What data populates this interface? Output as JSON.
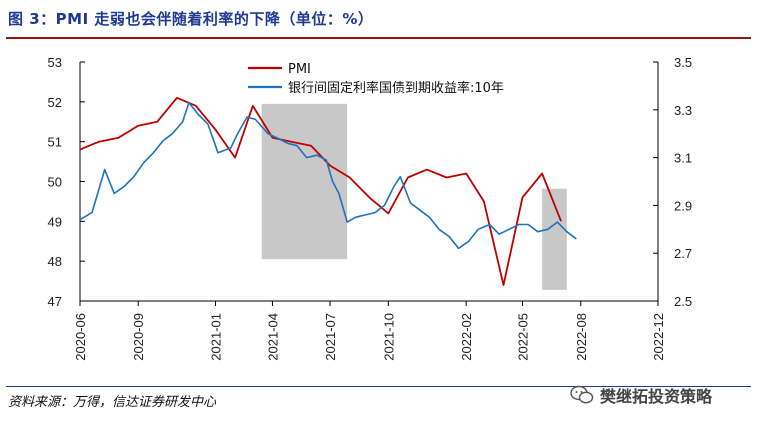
{
  "title": "图 3：PMI 走弱也会伴随着利率的下降（单位：%）",
  "source": "资料来源：万得，信达证券研发中心",
  "watermark": "樊继拓投资策略",
  "colors": {
    "pmi": "#c00000",
    "yield": "#1e73be",
    "shade": "#c8c8c8",
    "title": "#1f3a93"
  },
  "chart_data": {
    "type": "line",
    "x_labels": [
      "2020-06",
      "2020-09",
      "2021-01",
      "2021-04",
      "2021-07",
      "2021-10",
      "2022-02",
      "2022-05",
      "2022-08",
      "2022-12"
    ],
    "y_left": {
      "range": [
        47,
        53
      ],
      "ticks": [
        "47",
        "48",
        "49",
        "50",
        "51",
        "52",
        "53"
      ]
    },
    "y_right": {
      "range": [
        2.5,
        3.5
      ],
      "ticks": [
        "2.5",
        "2.7",
        "2.9",
        "3.1",
        "3.3",
        "3.5"
      ]
    },
    "shaded_ranges": [
      [
        "2021-03-15",
        "2021-07-28"
      ],
      [
        "2022-06-01",
        "2022-07-10"
      ]
    ],
    "series": [
      {
        "name": "PMI",
        "axis": "left",
        "points": [
          [
            "2020-06-01",
            50.8
          ],
          [
            "2020-07-01",
            51.0
          ],
          [
            "2020-08-01",
            51.1
          ],
          [
            "2020-09-01",
            51.4
          ],
          [
            "2020-10-01",
            51.5
          ],
          [
            "2020-11-01",
            52.1
          ],
          [
            "2020-12-01",
            51.9
          ],
          [
            "2021-01-01",
            51.3
          ],
          [
            "2021-02-01",
            50.6
          ],
          [
            "2021-03-01",
            51.9
          ],
          [
            "2021-04-01",
            51.1
          ],
          [
            "2021-05-01",
            51.0
          ],
          [
            "2021-06-01",
            50.9
          ],
          [
            "2021-07-01",
            50.4
          ],
          [
            "2021-08-01",
            50.1
          ],
          [
            "2021-09-01",
            49.6
          ],
          [
            "2021-10-01",
            49.2
          ],
          [
            "2021-11-01",
            50.1
          ],
          [
            "2021-12-01",
            50.3
          ],
          [
            "2022-01-01",
            50.1
          ],
          [
            "2022-02-01",
            50.2
          ],
          [
            "2022-03-01",
            49.5
          ],
          [
            "2022-04-01",
            47.4
          ],
          [
            "2022-05-01",
            49.6
          ],
          [
            "2022-06-01",
            50.2
          ],
          [
            "2022-07-01",
            49.0
          ]
        ]
      },
      {
        "name": "银行间固定利率国债到期收益率:10年",
        "axis": "right",
        "points": [
          [
            "2020-06-01",
            2.84
          ],
          [
            "2020-06-20",
            2.87
          ],
          [
            "2020-07-10",
            3.05
          ],
          [
            "2020-07-25",
            2.95
          ],
          [
            "2020-08-10",
            2.98
          ],
          [
            "2020-08-25",
            3.02
          ],
          [
            "2020-09-10",
            3.08
          ],
          [
            "2020-09-25",
            3.12
          ],
          [
            "2020-10-10",
            3.17
          ],
          [
            "2020-10-25",
            3.2
          ],
          [
            "2020-11-10",
            3.25
          ],
          [
            "2020-11-20",
            3.33
          ],
          [
            "2020-12-05",
            3.28
          ],
          [
            "2020-12-20",
            3.24
          ],
          [
            "2021-01-05",
            3.12
          ],
          [
            "2021-01-15",
            3.13
          ],
          [
            "2021-01-25",
            3.14
          ],
          [
            "2021-02-05",
            3.2
          ],
          [
            "2021-02-20",
            3.27
          ],
          [
            "2021-03-05",
            3.26
          ],
          [
            "2021-03-15",
            3.23
          ],
          [
            "2021-03-25",
            3.2
          ],
          [
            "2021-04-10",
            3.18
          ],
          [
            "2021-04-25",
            3.16
          ],
          [
            "2021-05-10",
            3.15
          ],
          [
            "2021-05-25",
            3.1
          ],
          [
            "2021-06-10",
            3.11
          ],
          [
            "2021-06-25",
            3.09
          ],
          [
            "2021-07-05",
            3.0
          ],
          [
            "2021-07-15",
            2.95
          ],
          [
            "2021-07-28",
            2.83
          ],
          [
            "2021-08-10",
            2.85
          ],
          [
            "2021-08-25",
            2.86
          ],
          [
            "2021-09-10",
            2.87
          ],
          [
            "2021-09-25",
            2.9
          ],
          [
            "2021-10-10",
            2.98
          ],
          [
            "2021-10-20",
            3.02
          ],
          [
            "2021-11-05",
            2.91
          ],
          [
            "2021-11-20",
            2.88
          ],
          [
            "2021-12-05",
            2.85
          ],
          [
            "2021-12-20",
            2.8
          ],
          [
            "2022-01-05",
            2.77
          ],
          [
            "2022-01-20",
            2.72
          ],
          [
            "2022-02-05",
            2.75
          ],
          [
            "2022-02-20",
            2.8
          ],
          [
            "2022-03-10",
            2.82
          ],
          [
            "2022-03-25",
            2.78
          ],
          [
            "2022-04-10",
            2.8
          ],
          [
            "2022-04-25",
            2.82
          ],
          [
            "2022-05-10",
            2.82
          ],
          [
            "2022-05-25",
            2.79
          ],
          [
            "2022-06-10",
            2.8
          ],
          [
            "2022-06-25",
            2.83
          ],
          [
            "2022-07-10",
            2.79
          ],
          [
            "2022-07-25",
            2.76
          ]
        ]
      }
    ]
  }
}
